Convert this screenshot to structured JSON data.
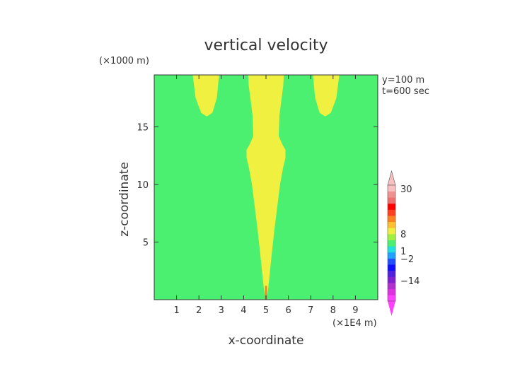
{
  "chart_data": {
    "type": "contour",
    "title": "vertical velocity",
    "xlabel": "x-coordinate",
    "ylabel": "z-coordinate",
    "x_unit": "(×1E4 m)",
    "y_unit": "(×1000 m)",
    "xlim": [
      0,
      10
    ],
    "ylim": [
      0,
      19.5
    ],
    "x_ticks": [
      "1",
      "2",
      "3",
      "4",
      "5",
      "6",
      "7",
      "8",
      "9"
    ],
    "y_ticks": [
      "5",
      "10",
      "15"
    ],
    "annotations": [
      "y=100 m",
      "t=600 sec"
    ],
    "background_color": "#4cf070",
    "region_color": "#f0f040",
    "regions": [
      {
        "name": "central plume",
        "outline": [
          [
            4.98,
            0.1
          ],
          [
            4.9,
            1
          ],
          [
            4.82,
            2.5
          ],
          [
            4.74,
            4
          ],
          [
            4.63,
            6
          ],
          [
            4.5,
            8
          ],
          [
            4.37,
            10
          ],
          [
            4.23,
            11.5
          ],
          [
            4.13,
            12.3
          ],
          [
            4.13,
            13
          ],
          [
            4.28,
            13.5
          ],
          [
            4.43,
            14.2
          ],
          [
            4.4,
            16
          ],
          [
            4.3,
            17.5
          ],
          [
            4.23,
            18.5
          ],
          [
            4.2,
            19.5
          ],
          [
            5.8,
            19.5
          ],
          [
            5.77,
            18.5
          ],
          [
            5.7,
            17.5
          ],
          [
            5.6,
            16
          ],
          [
            5.57,
            14.2
          ],
          [
            5.72,
            13.5
          ],
          [
            5.87,
            13
          ],
          [
            5.87,
            12.3
          ],
          [
            5.77,
            11.5
          ],
          [
            5.63,
            10
          ],
          [
            5.5,
            8
          ],
          [
            5.37,
            6
          ],
          [
            5.26,
            4
          ],
          [
            5.18,
            2.5
          ],
          [
            5.1,
            1
          ],
          [
            5.02,
            0.1
          ]
        ]
      },
      {
        "name": "left lobe",
        "outline": [
          [
            1.72,
            19.5
          ],
          [
            1.85,
            17.5
          ],
          [
            2.1,
            16.2
          ],
          [
            2.35,
            15.9
          ],
          [
            2.6,
            16.2
          ],
          [
            2.8,
            17.5
          ],
          [
            2.9,
            19.5
          ]
        ]
      },
      {
        "name": "right lobe",
        "outline": [
          [
            7.1,
            19.5
          ],
          [
            7.2,
            17.5
          ],
          [
            7.4,
            16.2
          ],
          [
            7.65,
            15.9
          ],
          [
            7.9,
            16.2
          ],
          [
            8.15,
            17.5
          ],
          [
            8.28,
            19.5
          ]
        ]
      },
      {
        "name": "surface jet",
        "outline": [
          [
            4.96,
            0
          ],
          [
            4.96,
            1.2
          ],
          [
            5.04,
            1.2
          ],
          [
            5.04,
            0
          ]
        ],
        "color": "#f08030"
      }
    ],
    "colorbar": {
      "labels": [
        {
          "text": "30",
          "value": 30
        },
        {
          "text": "8",
          "value": 8
        },
        {
          "text": "1",
          "value": 1
        },
        {
          "text": "−2",
          "value": -2
        },
        {
          "text": "−14",
          "value": -14
        }
      ],
      "segments": [
        {
          "color": "#ff40ff"
        },
        {
          "color": "#e030e0"
        },
        {
          "color": "#b030d0"
        },
        {
          "color": "#8020d0"
        },
        {
          "color": "#5020e0"
        },
        {
          "color": "#1010ff"
        },
        {
          "color": "#2050ff"
        },
        {
          "color": "#20a0ff"
        },
        {
          "color": "#20e0e0"
        },
        {
          "color": "#4cf070"
        },
        {
          "color": "#a0f040"
        },
        {
          "color": "#f0f040"
        },
        {
          "color": "#ffc030"
        },
        {
          "color": "#ff8020"
        },
        {
          "color": "#ff4020"
        },
        {
          "color": "#ff0000"
        },
        {
          "color": "#f07070"
        },
        {
          "color": "#f09090"
        },
        {
          "color": "#f8c0c0"
        }
      ]
    }
  }
}
